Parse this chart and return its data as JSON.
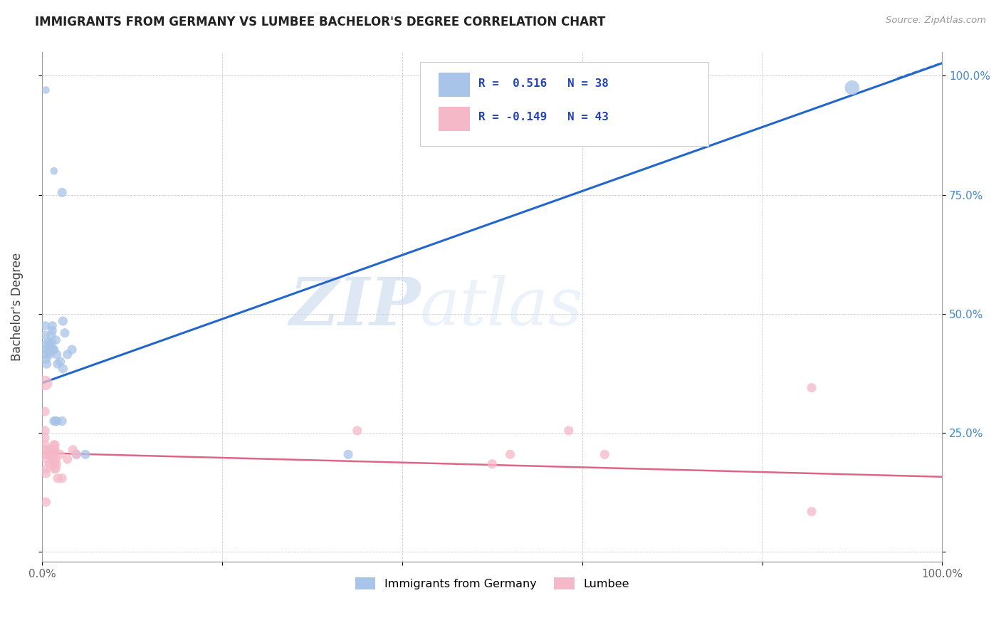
{
  "title": "IMMIGRANTS FROM GERMANY VS LUMBEE BACHELOR'S DEGREE CORRELATION CHART",
  "source": "Source: ZipAtlas.com",
  "ylabel": "Bachelor's Degree",
  "xlim": [
    0.0,
    1.0
  ],
  "ylim": [
    -0.02,
    1.05
  ],
  "blue_color": "#a8c4e8",
  "pink_color": "#f5b8c8",
  "line_blue": "#2266cc",
  "line_pink": "#dd6688",
  "watermark_zip": "ZIP",
  "watermark_atlas": "atlas",
  "blue_line_x": [
    0.0,
    1.05
  ],
  "blue_line_y": [
    0.355,
    1.06
  ],
  "pink_line_x": [
    0.0,
    1.0
  ],
  "pink_line_y": [
    0.208,
    0.158
  ],
  "blue_scatter": [
    [
      0.004,
      0.97
    ],
    [
      0.013,
      0.8
    ],
    [
      0.022,
      0.755
    ],
    [
      0.023,
      0.485
    ],
    [
      0.025,
      0.46
    ],
    [
      0.003,
      0.475
    ],
    [
      0.003,
      0.455
    ],
    [
      0.003,
      0.435
    ],
    [
      0.004,
      0.425
    ],
    [
      0.004,
      0.415
    ],
    [
      0.004,
      0.405
    ],
    [
      0.005,
      0.395
    ],
    [
      0.007,
      0.44
    ],
    [
      0.008,
      0.435
    ],
    [
      0.008,
      0.42
    ],
    [
      0.008,
      0.415
    ],
    [
      0.009,
      0.43
    ],
    [
      0.01,
      0.44
    ],
    [
      0.01,
      0.455
    ],
    [
      0.011,
      0.465
    ],
    [
      0.011,
      0.475
    ],
    [
      0.012,
      0.425
    ],
    [
      0.013,
      0.425
    ],
    [
      0.013,
      0.275
    ],
    [
      0.015,
      0.445
    ],
    [
      0.015,
      0.275
    ],
    [
      0.016,
      0.415
    ],
    [
      0.016,
      0.275
    ],
    [
      0.017,
      0.395
    ],
    [
      0.02,
      0.4
    ],
    [
      0.022,
      0.275
    ],
    [
      0.023,
      0.385
    ],
    [
      0.028,
      0.415
    ],
    [
      0.033,
      0.425
    ],
    [
      0.038,
      0.205
    ],
    [
      0.048,
      0.205
    ],
    [
      0.34,
      0.205
    ],
    [
      0.585,
      0.875
    ],
    [
      0.9,
      0.975
    ]
  ],
  "pink_scatter": [
    [
      0.003,
      0.355
    ],
    [
      0.003,
      0.295
    ],
    [
      0.003,
      0.255
    ],
    [
      0.003,
      0.24
    ],
    [
      0.003,
      0.225
    ],
    [
      0.004,
      0.215
    ],
    [
      0.004,
      0.205
    ],
    [
      0.004,
      0.195
    ],
    [
      0.004,
      0.175
    ],
    [
      0.004,
      0.165
    ],
    [
      0.004,
      0.105
    ],
    [
      0.007,
      0.215
    ],
    [
      0.008,
      0.205
    ],
    [
      0.008,
      0.185
    ],
    [
      0.009,
      0.205
    ],
    [
      0.01,
      0.215
    ],
    [
      0.01,
      0.195
    ],
    [
      0.011,
      0.215
    ],
    [
      0.012,
      0.215
    ],
    [
      0.012,
      0.205
    ],
    [
      0.013,
      0.225
    ],
    [
      0.013,
      0.215
    ],
    [
      0.013,
      0.205
    ],
    [
      0.013,
      0.195
    ],
    [
      0.013,
      0.185
    ],
    [
      0.013,
      0.175
    ],
    [
      0.014,
      0.225
    ],
    [
      0.014,
      0.215
    ],
    [
      0.015,
      0.195
    ],
    [
      0.015,
      0.175
    ],
    [
      0.016,
      0.185
    ],
    [
      0.017,
      0.155
    ],
    [
      0.02,
      0.205
    ],
    [
      0.022,
      0.155
    ],
    [
      0.028,
      0.195
    ],
    [
      0.034,
      0.215
    ],
    [
      0.038,
      0.205
    ],
    [
      0.35,
      0.255
    ],
    [
      0.5,
      0.185
    ],
    [
      0.52,
      0.205
    ],
    [
      0.585,
      0.255
    ],
    [
      0.625,
      0.205
    ],
    [
      0.855,
      0.085
    ],
    [
      0.855,
      0.345
    ]
  ],
  "blue_sizes": [
    60,
    60,
    90,
    90,
    90,
    90,
    90,
    90,
    90,
    90,
    90,
    90,
    90,
    90,
    90,
    90,
    90,
    90,
    90,
    90,
    90,
    90,
    90,
    90,
    90,
    90,
    90,
    90,
    90,
    90,
    90,
    90,
    90,
    90,
    90,
    90,
    90,
    90,
    220
  ],
  "pink_sizes": [
    220,
    90,
    90,
    90,
    90,
    90,
    90,
    90,
    90,
    90,
    90,
    90,
    90,
    90,
    90,
    90,
    90,
    90,
    90,
    90,
    90,
    90,
    90,
    90,
    90,
    90,
    90,
    90,
    90,
    90,
    90,
    90,
    90,
    90,
    90,
    90,
    90,
    90,
    90,
    90,
    90,
    90,
    90,
    90
  ]
}
